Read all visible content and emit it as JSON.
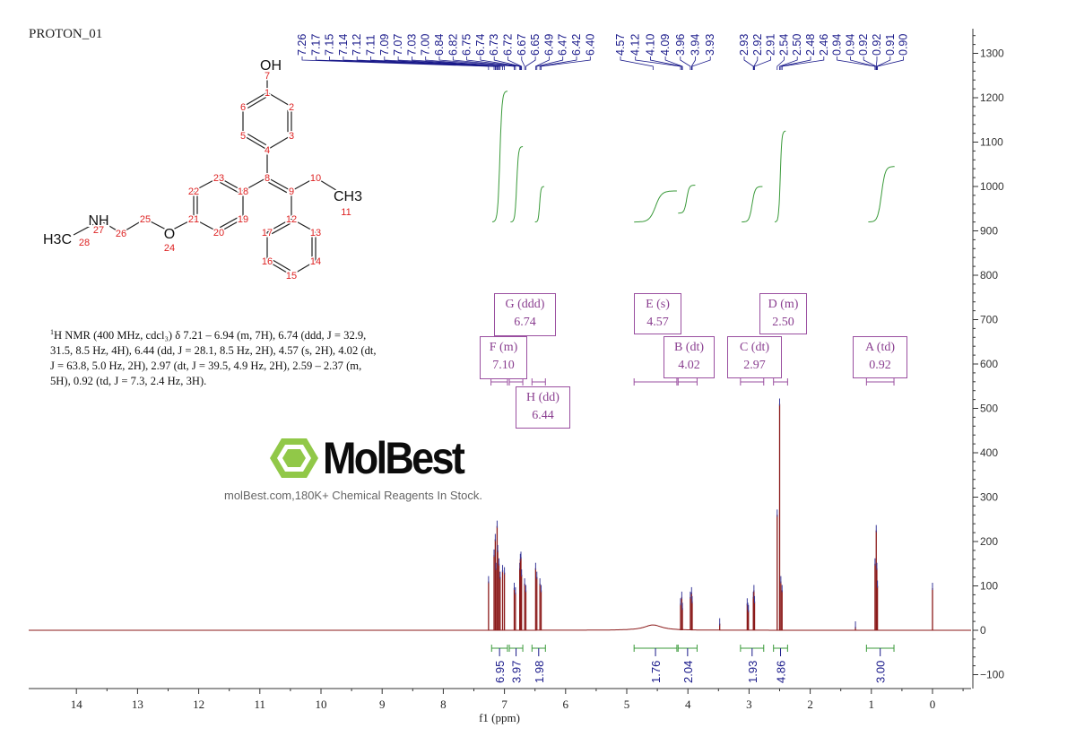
{
  "title": "PROTON_01",
  "description": {
    "nucleus_sup": "1",
    "text": "H NMR (400 MHz, cdcl₃) δ 7.21 – 6.94 (m, 7H), 6.74 (ddd, J = 32.9, 31.5, 8.5 Hz, 4H), 6.44 (dd, J = 28.1, 8.5 Hz, 2H), 4.57 (s, 2H), 4.02 (dt, J = 63.8, 5.0 Hz, 2H), 2.97 (dt, J = 39.5, 4.9 Hz, 2H), 2.59 – 2.37 (m, 5H), 0.92 (td, J = 7.3, 2.4 Hz, 3H)."
  },
  "watermark": {
    "logo_text": "MolBest",
    "tagline": "molBest.com,180K+ Chemical Reagents In Stock."
  },
  "structure": {
    "labels": {
      "oh": "OH",
      "ch3": "CH3",
      "nh": "NH",
      "h3c": "H3C",
      "o": "O"
    },
    "atom_numbers": [
      "1",
      "2",
      "3",
      "4",
      "5",
      "6",
      "7",
      "8",
      "9",
      "10",
      "11",
      "12",
      "13",
      "14",
      "15",
      "16",
      "17",
      "18",
      "19",
      "20",
      "21",
      "22",
      "23",
      "24",
      "25",
      "26",
      "27",
      "28"
    ]
  },
  "multiplets": [
    {
      "id": "G",
      "label": "G (ddd)",
      "shift": "6.74",
      "range": [
        6.92,
        6.7
      ]
    },
    {
      "id": "F",
      "label": "F (m)",
      "shift": "7.10",
      "range": [
        7.22,
        6.95
      ]
    },
    {
      "id": "H",
      "label": "H (dd)",
      "shift": "6.44",
      "range": [
        6.55,
        6.33
      ]
    },
    {
      "id": "E",
      "label": "E (s)",
      "shift": "4.57",
      "range": [
        4.88,
        4.18
      ]
    },
    {
      "id": "B",
      "label": "B (dt)",
      "shift": "4.02",
      "range": [
        4.16,
        3.85
      ]
    },
    {
      "id": "C",
      "label": "C (dt)",
      "shift": "2.97",
      "range": [
        3.14,
        2.76
      ]
    },
    {
      "id": "D",
      "label": "D (m)",
      "shift": "2.50",
      "range": [
        2.6,
        2.37
      ]
    },
    {
      "id": "A",
      "label": "A (td)",
      "shift": "0.92",
      "range": [
        1.08,
        0.63
      ]
    }
  ],
  "chart_data": {
    "type": "line",
    "xlabel": "f1 (ppm)",
    "xlim": [
      14.8,
      -0.65
    ],
    "ylim": [
      -100,
      1340
    ],
    "x_reversed": true,
    "grid": false,
    "x_ticks": [
      "14",
      "13",
      "12",
      "11",
      "10",
      "9",
      "8",
      "7",
      "6",
      "5",
      "4",
      "3",
      "2",
      "1",
      "0"
    ],
    "y_ticks": [
      "1300",
      "1200",
      "1100",
      "1000",
      "900",
      "800",
      "700",
      "600",
      "500",
      "400",
      "300",
      "200",
      "100",
      "0",
      "-100"
    ],
    "colors": {
      "spectrum": "#8b1a1a",
      "integral": "#3a9a3a",
      "peak_label": "#1a1a8a",
      "multiplet": "#9a4fa0"
    },
    "peak_labels": [
      "7.26",
      "7.17",
      "7.15",
      "7.14",
      "7.12",
      "7.11",
      "7.09",
      "7.07",
      "7.03",
      "7.00",
      "6.84",
      "6.82",
      "6.75",
      "6.74",
      "6.73",
      "6.72",
      "6.67",
      "6.65",
      "6.49",
      "6.47",
      "6.42",
      "6.40",
      "4.57",
      "4.12",
      "4.10",
      "4.09",
      "3.96",
      "3.94",
      "3.93",
      "2.93",
      "2.92",
      "2.91",
      "2.54",
      "2.50",
      "2.48",
      "2.46",
      "0.94",
      "0.94",
      "0.92",
      "0.92",
      "0.91",
      "0.90"
    ],
    "peaks": [
      [
        7.26,
        110
      ],
      [
        7.17,
        170
      ],
      [
        7.15,
        205
      ],
      [
        7.14,
        140
      ],
      [
        7.12,
        235
      ],
      [
        7.11,
        180
      ],
      [
        7.09,
        150
      ],
      [
        7.07,
        120
      ],
      [
        7.03,
        135
      ],
      [
        7.0,
        130
      ],
      [
        6.84,
        95
      ],
      [
        6.82,
        85
      ],
      [
        6.75,
        140
      ],
      [
        6.74,
        160
      ],
      [
        6.73,
        165
      ],
      [
        6.72,
        125
      ],
      [
        6.67,
        105
      ],
      [
        6.65,
        90
      ],
      [
        6.49,
        140
      ],
      [
        6.47,
        120
      ],
      [
        6.42,
        105
      ],
      [
        6.4,
        90
      ],
      [
        4.12,
        60
      ],
      [
        4.1,
        75
      ],
      [
        4.09,
        50
      ],
      [
        3.96,
        75
      ],
      [
        3.94,
        85
      ],
      [
        3.93,
        65
      ],
      [
        3.48,
        15
      ],
      [
        3.03,
        60
      ],
      [
        3.02,
        50
      ],
      [
        3.01,
        45
      ],
      [
        2.93,
        75
      ],
      [
        2.92,
        90
      ],
      [
        2.91,
        65
      ],
      [
        2.54,
        260
      ],
      [
        2.5,
        510
      ],
      [
        2.48,
        110
      ],
      [
        2.46,
        90
      ],
      [
        1.26,
        8
      ],
      [
        0.94,
        150
      ],
      [
        0.92,
        225
      ],
      [
        0.91,
        140
      ],
      [
        0.9,
        100
      ],
      [
        0.0,
        95
      ]
    ],
    "broad_peaks": [
      {
        "ppm": 4.57,
        "height": 12,
        "width": 0.35
      }
    ],
    "integrals": [
      {
        "value": "6.95",
        "range": [
          7.21,
          6.95
        ]
      },
      {
        "value": "3.97",
        "range": [
          6.92,
          6.7
        ]
      },
      {
        "value": "1.98",
        "range": [
          6.55,
          6.33
        ]
      },
      {
        "value": "1.76",
        "range": [
          4.88,
          4.18
        ]
      },
      {
        "value": "2.04",
        "range": [
          4.16,
          3.85
        ]
      },
      {
        "value": "1.93",
        "range": [
          3.14,
          2.76
        ]
      },
      {
        "value": "4.86",
        "range": [
          2.6,
          2.37
        ]
      },
      {
        "value": "3.00",
        "range": [
          1.08,
          0.63
        ]
      }
    ]
  }
}
